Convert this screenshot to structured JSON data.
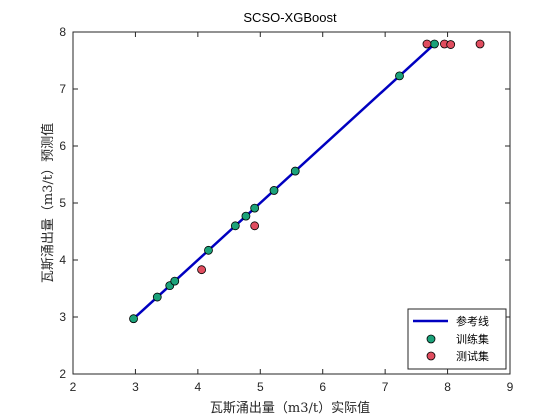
{
  "chart_data": {
    "type": "scatter",
    "title": "SCSO-XGBoost",
    "xlabel": "瓦斯涌出量（m3/t）实际值",
    "ylabel": "瓦斯涌出量（m3/t）预测值",
    "xlim": [
      2,
      9
    ],
    "ylim": [
      2,
      8
    ],
    "xticks": [
      2,
      3,
      4,
      5,
      6,
      7,
      8,
      9
    ],
    "yticks": [
      2,
      3,
      4,
      5,
      6,
      7,
      8
    ],
    "grid": false,
    "legend_position": "bottom-right",
    "series": [
      {
        "name": "参考线",
        "kind": "line",
        "color": "#0000c0",
        "x": [
          2.97,
          7.8
        ],
        "y": [
          2.97,
          7.8
        ]
      },
      {
        "name": "训练集",
        "kind": "scatter",
        "color": "#1ba27a",
        "x": [
          2.97,
          3.35,
          3.55,
          3.63,
          4.17,
          4.6,
          4.77,
          4.91,
          5.22,
          5.56,
          7.23,
          7.79
        ],
        "y": [
          2.97,
          3.35,
          3.55,
          3.63,
          4.17,
          4.6,
          4.77,
          4.91,
          5.22,
          5.56,
          7.23,
          7.79
        ]
      },
      {
        "name": "测试集",
        "kind": "scatter",
        "color": "#e04d5f",
        "x": [
          4.06,
          4.91,
          7.67,
          7.95,
          8.05,
          8.52
        ],
        "y": [
          3.83,
          4.6,
          7.79,
          7.79,
          7.78,
          7.79
        ]
      }
    ]
  }
}
